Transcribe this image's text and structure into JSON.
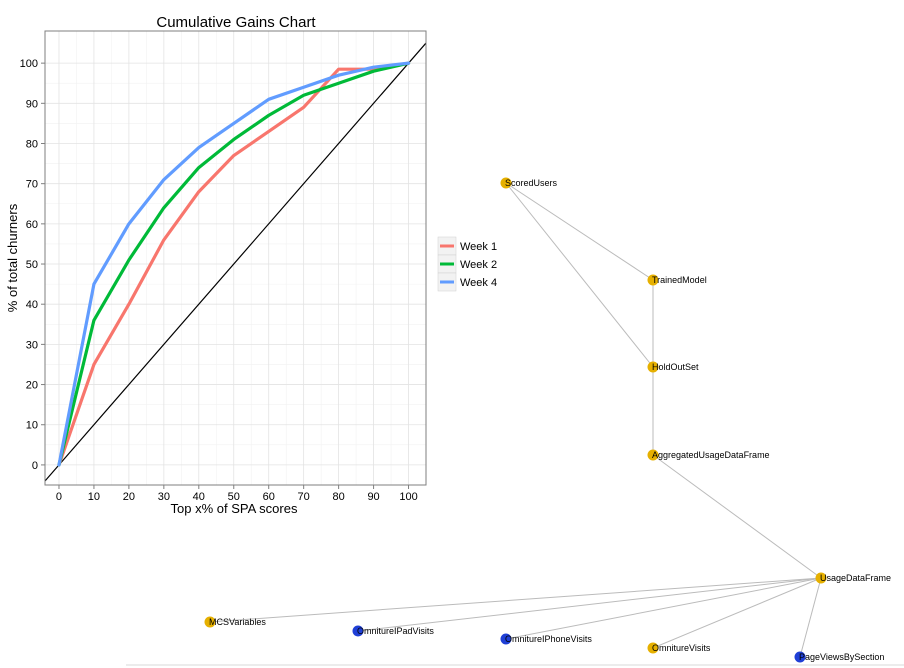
{
  "chart_data": {
    "type": "line",
    "title": "Cumulative Gains Chart",
    "xlabel": "Top x% of SPA scores",
    "ylabel": "% of total churners",
    "xlim": [
      -4,
      105
    ],
    "ylim": [
      -5,
      108
    ],
    "xticks": [
      0,
      10,
      20,
      30,
      40,
      50,
      60,
      70,
      80,
      90,
      100
    ],
    "yticks": [
      0,
      10,
      20,
      30,
      40,
      50,
      60,
      70,
      80,
      90,
      100
    ],
    "grid": true,
    "legend_position": "right",
    "x": [
      0,
      10,
      20,
      30,
      40,
      50,
      60,
      70,
      80,
      90,
      100
    ],
    "series": [
      {
        "name": "Week 1",
        "color": "#f8766d",
        "values": [
          0,
          25,
          40,
          56,
          68,
          77,
          83,
          89,
          98.5,
          98.5,
          100
        ]
      },
      {
        "name": "Week 2",
        "color": "#00ba38",
        "values": [
          0,
          36,
          51,
          64,
          74,
          81,
          87,
          92,
          95,
          98,
          100
        ]
      },
      {
        "name": "Week 4",
        "color": "#619cff",
        "values": [
          0,
          45,
          60,
          71,
          79,
          85,
          91,
          94,
          97,
          99,
          100
        ]
      }
    ],
    "baseline": {
      "x": [
        -4,
        105
      ],
      "y": [
        -4,
        105
      ],
      "color": "#000000"
    }
  },
  "graph": {
    "colors": {
      "yellow": "#e6b000",
      "blue": "#1f3fd6",
      "edge": "#bbbbbb"
    },
    "nodes": [
      {
        "id": "ScoredUsers",
        "label": "ScoredUsers",
        "color": "yellow"
      },
      {
        "id": "TrainedModel",
        "label": "TrainedModel",
        "color": "yellow"
      },
      {
        "id": "HoldOutSet",
        "label": "HoldOutSet",
        "color": "yellow"
      },
      {
        "id": "AggregatedUsageDataFrame",
        "label": "AggregatedUsageDataFrame",
        "color": "yellow"
      },
      {
        "id": "UsageDataFrame",
        "label": "UsageDataFrame",
        "color": "yellow"
      },
      {
        "id": "MCSVariables",
        "label": "MCSVariables",
        "color": "yellow"
      },
      {
        "id": "OmnitureIPadVisits",
        "label": "OmnitureIPadVisits",
        "color": "blue"
      },
      {
        "id": "OmnitureIPhoneVisits",
        "label": "OmnitureIPhoneVisits",
        "color": "blue"
      },
      {
        "id": "OmnitureVisits",
        "label": "OmnitureVisits",
        "color": "yellow"
      },
      {
        "id": "PageViewsBySection",
        "label": "PageViewsBySection",
        "color": "blue"
      }
    ],
    "edges": [
      [
        "ScoredUsers",
        "TrainedModel"
      ],
      [
        "ScoredUsers",
        "HoldOutSet"
      ],
      [
        "TrainedModel",
        "HoldOutSet"
      ],
      [
        "HoldOutSet",
        "AggregatedUsageDataFrame"
      ],
      [
        "AggregatedUsageDataFrame",
        "UsageDataFrame"
      ],
      [
        "UsageDataFrame",
        "MCSVariables"
      ],
      [
        "UsageDataFrame",
        "OmnitureIPadVisits"
      ],
      [
        "UsageDataFrame",
        "OmnitureIPhoneVisits"
      ],
      [
        "UsageDataFrame",
        "OmnitureVisits"
      ],
      [
        "UsageDataFrame",
        "PageViewsBySection"
      ]
    ]
  }
}
